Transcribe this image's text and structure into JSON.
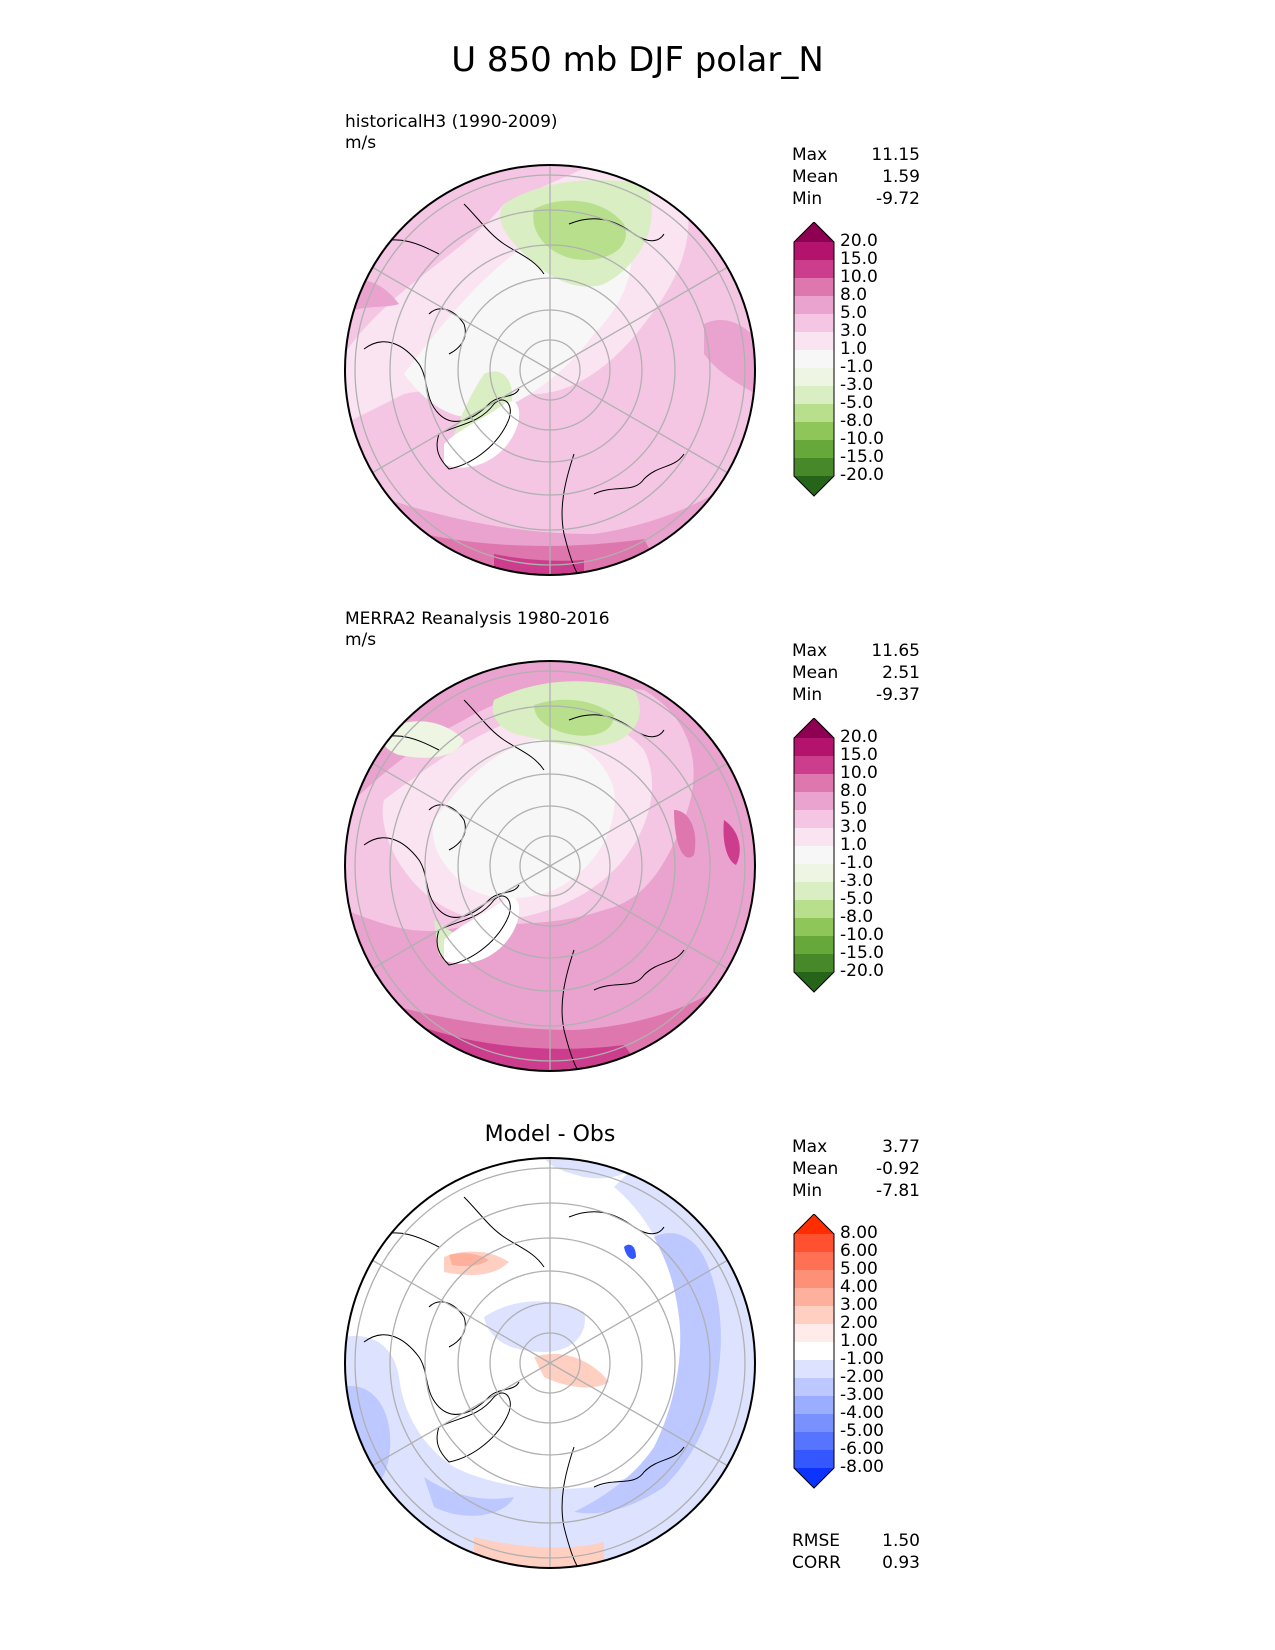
{
  "title": "U 850 mb DJF polar_N",
  "panels": [
    {
      "label": "historicalH3 (1990-2009)",
      "units": "m/s",
      "stats": [
        {
          "name": "Max",
          "value": "11.15"
        },
        {
          "name": "Mean",
          "value": "1.59"
        },
        {
          "name": "Min",
          "value": "-9.72"
        }
      ]
    },
    {
      "label": "MERRA2 Reanalysis 1980-2016",
      "units": "m/s",
      "stats": [
        {
          "name": "Max",
          "value": "11.65"
        },
        {
          "name": "Mean",
          "value": "2.51"
        },
        {
          "name": "Min",
          "value": "-9.37"
        }
      ]
    },
    {
      "title": "Model - Obs",
      "stats": [
        {
          "name": "Max",
          "value": "3.77"
        },
        {
          "name": "Mean",
          "value": "-0.92"
        },
        {
          "name": "Min",
          "value": "-7.81"
        }
      ],
      "metrics": [
        {
          "name": "RMSE",
          "value": "1.50"
        },
        {
          "name": "CORR",
          "value": "0.93"
        }
      ]
    }
  ],
  "colorbars": {
    "field": {
      "labels": [
        "20.0",
        "15.0",
        "10.0",
        "8.0",
        "5.0",
        "3.0",
        "1.0",
        "-1.0",
        "-3.0",
        "-5.0",
        "-8.0",
        "-10.0",
        "-15.0",
        "-20.0"
      ],
      "colors": [
        "#8e0152",
        "#b3136c",
        "#cc3d8e",
        "#de77ae",
        "#eaa2cf",
        "#f4c6e4",
        "#fbe4f1",
        "#f7f7f7",
        "#eef5e3",
        "#d9eec2",
        "#b8df8c",
        "#8fc65a",
        "#67a83b",
        "#46882a",
        "#266419"
      ]
    },
    "diff": {
      "labels": [
        "8.00",
        "6.00",
        "5.00",
        "4.00",
        "3.00",
        "2.00",
        "1.00",
        "-1.00",
        "-2.00",
        "-3.00",
        "-4.00",
        "-5.00",
        "-6.00",
        "-8.00"
      ],
      "colors": [
        "#ff2d00",
        "#ff5030",
        "#ff7055",
        "#ff9078",
        "#ffb09c",
        "#ffd0c2",
        "#ffecea",
        "#ffffff",
        "#dde3ff",
        "#bcc8ff",
        "#9aadff",
        "#7891ff",
        "#5674ff",
        "#3457ff",
        "#0d33ff"
      ]
    }
  }
}
